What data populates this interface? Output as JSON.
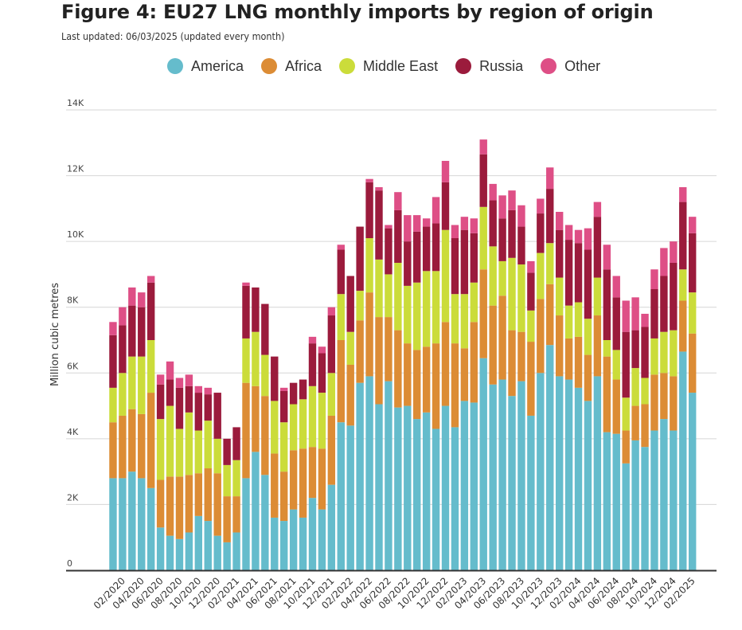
{
  "header": {
    "title": "Figure 4: EU27 LNG monthly imports by region of origin",
    "subtitle": "Last updated: 06/03/2025 (updated every month)"
  },
  "colors": {
    "America": "#65bccc",
    "Africa": "#dc8c35",
    "Middle East": "#cbdc3a",
    "Russia": "#9b1b3c",
    "Other": "#de4f86",
    "gridline": "#d6d6d6",
    "axis": "#333333"
  },
  "chart_data": {
    "type": "bar",
    "stacked": true,
    "title": "Figure 4: EU27 LNG monthly imports by region of origin",
    "xlabel": "",
    "ylabel": "Million cubic metres",
    "ylim": [
      0,
      14000
    ],
    "yticks": [
      0,
      2000,
      4000,
      6000,
      8000,
      10000,
      12000,
      14000
    ],
    "ytick_labels": [
      "0",
      "2K",
      "4K",
      "6K",
      "8K",
      "10K",
      "12K",
      "14K"
    ],
    "grid": true,
    "legend_position": "top",
    "categories": [
      "01/2020",
      "02/2020",
      "03/2020",
      "04/2020",
      "05/2020",
      "06/2020",
      "07/2020",
      "08/2020",
      "09/2020",
      "10/2020",
      "11/2020",
      "12/2020",
      "01/2021",
      "02/2021",
      "03/2021",
      "04/2021",
      "05/2021",
      "06/2021",
      "07/2021",
      "08/2021",
      "09/2021",
      "10/2021",
      "11/2021",
      "12/2021",
      "01/2022",
      "02/2022",
      "03/2022",
      "04/2022",
      "05/2022",
      "06/2022",
      "07/2022",
      "08/2022",
      "09/2022",
      "10/2022",
      "11/2022",
      "12/2022",
      "01/2023",
      "02/2023",
      "03/2023",
      "04/2023",
      "05/2023",
      "06/2023",
      "07/2023",
      "08/2023",
      "09/2023",
      "10/2023",
      "11/2023",
      "12/2023",
      "01/2024",
      "02/2024",
      "03/2024",
      "04/2024",
      "05/2024",
      "06/2024",
      "07/2024",
      "08/2024",
      "09/2024",
      "10/2024",
      "11/2024",
      "12/2024",
      "01/2025",
      "02/2025"
    ],
    "x_tick_labels": [
      "02/2020",
      "04/2020",
      "06/2020",
      "08/2020",
      "10/2020",
      "12/2020",
      "02/2021",
      "04/2021",
      "06/2021",
      "08/2021",
      "10/2021",
      "12/2021",
      "02/2022",
      "04/2022",
      "06/2022",
      "08/2022",
      "10/2022",
      "12/2022",
      "02/2023",
      "04/2023",
      "06/2023",
      "08/2023",
      "10/2023",
      "12/2023",
      "02/2024",
      "04/2024",
      "06/2024",
      "08/2024",
      "10/2024",
      "12/2024",
      "02/2025"
    ],
    "series": [
      {
        "name": "America",
        "values": [
          2800,
          2800,
          3000,
          2800,
          2500,
          1300,
          1050,
          950,
          1150,
          1650,
          1500,
          1050,
          850,
          1150,
          2800,
          3600,
          2900,
          1600,
          1500,
          1850,
          1600,
          2200,
          1850,
          2600,
          4500,
          4400,
          5700,
          5900,
          5050,
          5750,
          4950,
          5000,
          4600,
          4800,
          4300,
          5000,
          4350,
          5150,
          5100,
          6450,
          5650,
          5800,
          5300,
          5750,
          4700,
          6000,
          6850,
          5900,
          5800,
          5550,
          5150,
          5900,
          4200,
          4150,
          3250,
          3950,
          3750,
          4250,
          4600,
          4250,
          6650,
          5400
        ]
      },
      {
        "name": "Africa",
        "values": [
          1700,
          1900,
          1900,
          1950,
          2900,
          1450,
          1800,
          1900,
          1750,
          1300,
          1600,
          1900,
          1400,
          1100,
          2900,
          2000,
          2400,
          1950,
          1500,
          1800,
          2100,
          1550,
          1850,
          2100,
          2500,
          1850,
          1900,
          2550,
          2650,
          1950,
          2350,
          1900,
          2100,
          2000,
          2600,
          2550,
          2550,
          1600,
          2450,
          2700,
          2400,
          2550,
          2000,
          1500,
          2250,
          2250,
          1850,
          1850,
          1250,
          1550,
          1400,
          1850,
          2300,
          1650,
          1000,
          1050,
          1300,
          1700,
          1400,
          1650,
          1550,
          1800
        ]
      },
      {
        "name": "Middle East",
        "values": [
          1050,
          1300,
          1600,
          1750,
          1600,
          1850,
          2150,
          1450,
          1900,
          1300,
          1450,
          1050,
          950,
          1100,
          1350,
          1650,
          1250,
          1600,
          1500,
          1400,
          1500,
          1850,
          1700,
          1300,
          1400,
          1000,
          900,
          1650,
          1750,
          1300,
          2050,
          1750,
          2050,
          2300,
          2200,
          2800,
          1500,
          1650,
          1200,
          1900,
          1800,
          1050,
          2200,
          2050,
          950,
          1400,
          1250,
          1150,
          1000,
          1050,
          1100,
          1150,
          500,
          900,
          1000,
          1150,
          800,
          1100,
          1250,
          1400,
          950,
          1250
        ]
      },
      {
        "name": "Russia",
        "values": [
          1600,
          1450,
          1550,
          1500,
          1750,
          1050,
          800,
          1250,
          800,
          1150,
          800,
          1400,
          800,
          1000,
          1600,
          1350,
          1550,
          1350,
          950,
          650,
          600,
          1300,
          1200,
          1750,
          1350,
          1700,
          1950,
          1700,
          2100,
          1400,
          1600,
          1350,
          1550,
          1350,
          1450,
          1450,
          1700,
          1950,
          1500,
          1600,
          1400,
          1300,
          1450,
          1150,
          1150,
          1200,
          1650,
          1450,
          2000,
          1800,
          2100,
          1850,
          2150,
          1600,
          2000,
          1150,
          1550,
          1500,
          1700,
          2050,
          2050,
          1800
        ]
      },
      {
        "name": "Other",
        "values": [
          400,
          550,
          550,
          450,
          200,
          300,
          550,
          300,
          350,
          200,
          200,
          0,
          0,
          0,
          100,
          0,
          0,
          0,
          100,
          0,
          0,
          200,
          200,
          250,
          150,
          0,
          0,
          100,
          100,
          100,
          550,
          800,
          500,
          250,
          800,
          650,
          400,
          400,
          450,
          450,
          500,
          700,
          600,
          650,
          350,
          450,
          650,
          550,
          450,
          400,
          650,
          450,
          750,
          650,
          950,
          1000,
          400,
          600,
          850,
          650,
          450,
          500
        ]
      }
    ]
  }
}
